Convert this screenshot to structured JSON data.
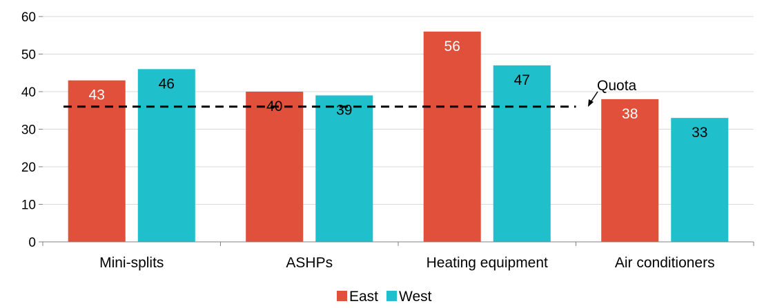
{
  "chart_data": {
    "type": "bar",
    "categories": [
      "Mini-splits",
      "ASHPs",
      "Heating equipment",
      "Air conditioners"
    ],
    "series": [
      {
        "name": "East",
        "values": [
          43,
          40,
          56,
          38
        ],
        "color": "#e0503a"
      },
      {
        "name": "West",
        "values": [
          46,
          39,
          47,
          33
        ],
        "color": "#1fbfcc"
      }
    ],
    "y_ticks": [
      "0",
      "10",
      "20",
      "30",
      "40",
      "50",
      "60"
    ],
    "ylim": [
      0,
      60
    ],
    "grid": true,
    "legend": "bottom-center",
    "reference_line": {
      "label": "Quota",
      "value": 36,
      "style": "dashed",
      "color": "#000000"
    },
    "colors": {
      "grid": "#d9d9d9",
      "axis": "#808080"
    }
  }
}
